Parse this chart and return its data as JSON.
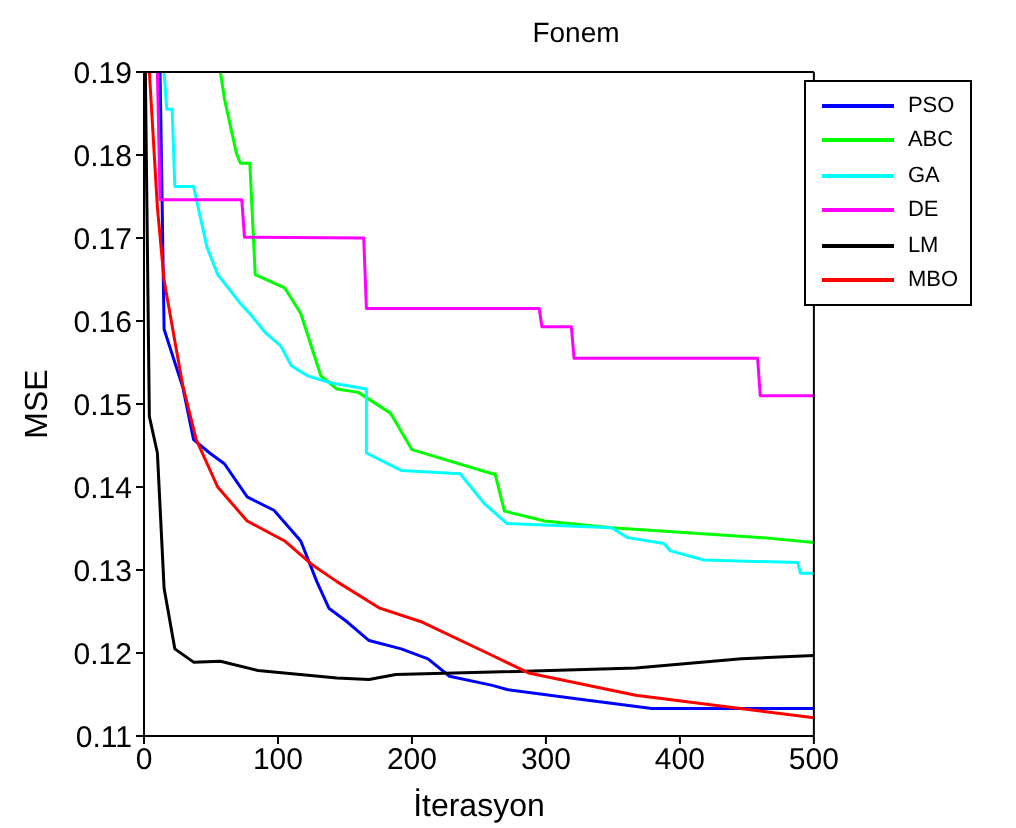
{
  "chart_data": {
    "type": "line",
    "title": "Fonem",
    "xlabel": "İterasyon",
    "ylabel": "MSE",
    "xlim": [
      0,
      500
    ],
    "xticks": [
      0,
      100,
      200,
      300,
      400,
      500
    ],
    "ylim": [
      0.11,
      0.19
    ],
    "yticks": [
      0.11,
      0.12,
      0.13,
      0.14,
      0.15,
      0.16,
      0.17,
      0.18,
      0.19
    ],
    "grid": false,
    "legend": "top right",
    "marker": "none",
    "line_style": "solid",
    "series": [
      {
        "name": "PSO",
        "color": "#0000ff",
        "x": [
          12,
          15,
          25,
          29,
          37,
          49,
          60,
          77,
          97,
          117,
          129,
          138,
          152,
          168,
          192,
          212,
          228,
          260,
          271,
          327,
          379,
          500
        ],
        "values": [
          0.19,
          0.159,
          0.154,
          0.152,
          0.1457,
          0.1441,
          0.1428,
          0.1388,
          0.1372,
          0.1335,
          0.1286,
          0.1254,
          0.1237,
          0.1215,
          0.1205,
          0.1193,
          0.1172,
          0.1161,
          0.1156,
          0.1144,
          0.1133,
          0.1133
        ]
      },
      {
        "name": "ABC",
        "color": "#00ff00",
        "x": [
          57,
          60,
          69,
          72,
          79,
          83,
          105,
          117,
          132,
          144,
          160,
          184,
          200,
          260,
          262,
          269,
          299,
          349,
          462,
          500
        ],
        "values": [
          0.19,
          0.1868,
          0.1802,
          0.179,
          0.179,
          0.1656,
          0.164,
          0.1609,
          0.1534,
          0.1518,
          0.1514,
          0.1489,
          0.1445,
          0.1416,
          0.1416,
          0.1371,
          0.1359,
          0.1351,
          0.1339,
          0.1333
        ]
      },
      {
        "name": "GA",
        "color": "#00ffff",
        "x": [
          15,
          17,
          21,
          23,
          37,
          47,
          55,
          71,
          80,
          90,
          102,
          110,
          122,
          138,
          166,
          166,
          192,
          236,
          254,
          271,
          349,
          361,
          388,
          393,
          418,
          488,
          490,
          500
        ],
        "values": [
          0.19,
          0.1855,
          0.1855,
          0.1762,
          0.1762,
          0.1689,
          0.1656,
          0.1623,
          0.1607,
          0.1587,
          0.157,
          0.1546,
          0.1534,
          0.1526,
          0.1518,
          0.1441,
          0.142,
          0.1416,
          0.138,
          0.1356,
          0.1351,
          0.1339,
          0.1332,
          0.1323,
          0.1312,
          0.1309,
          0.1296,
          0.1296
        ]
      },
      {
        "name": "DE",
        "color": "#ff00ff",
        "x": [
          10,
          12,
          73,
          75,
          164,
          166,
          295,
          297,
          319,
          321,
          458,
          460,
          500
        ],
        "values": [
          0.19,
          0.1746,
          0.1746,
          0.1701,
          0.17,
          0.1615,
          0.1615,
          0.1593,
          0.1593,
          0.1555,
          0.1555,
          0.151,
          0.151
        ]
      },
      {
        "name": "LM",
        "color": "#000000",
        "x": [
          1,
          4,
          10,
          15,
          23,
          37,
          57,
          85,
          144,
          168,
          188,
          260,
          367,
          446,
          500
        ],
        "values": [
          0.19,
          0.1485,
          0.1441,
          0.1278,
          0.1205,
          0.1189,
          0.119,
          0.1179,
          0.117,
          0.1168,
          0.1174,
          0.1177,
          0.1182,
          0.1193,
          0.1197
        ]
      },
      {
        "name": "MBO",
        "color": "#ff0000",
        "x": [
          4,
          10,
          15,
          23,
          29,
          39,
          55,
          77,
          105,
          125,
          144,
          176,
          208,
          260,
          287,
          367,
          500
        ],
        "values": [
          0.19,
          0.1737,
          0.1649,
          0.1576,
          0.1522,
          0.1457,
          0.14,
          0.1359,
          0.1335,
          0.1307,
          0.1286,
          0.1254,
          0.1237,
          0.1197,
          0.1176,
          0.1149,
          0.1122
        ]
      }
    ]
  }
}
